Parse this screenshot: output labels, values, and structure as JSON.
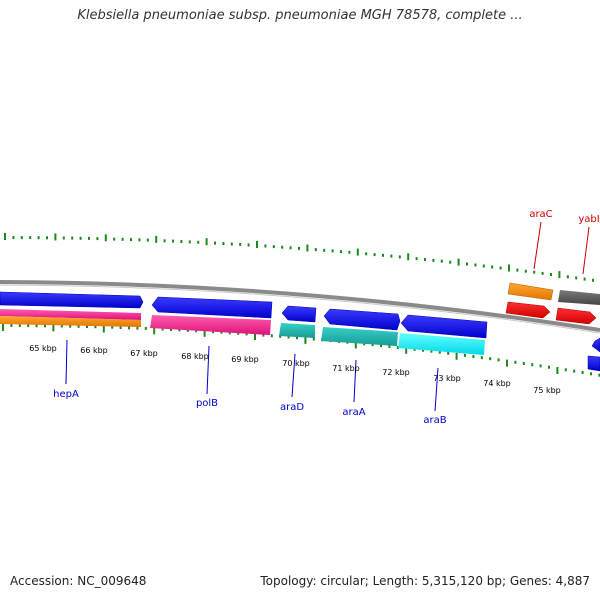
{
  "title": "Klebsiella pneumoniae subsp. pneumoniae MGH 78578, complete ...",
  "footer": {
    "accession": "Accession: NC_009648",
    "summary": "Topology: circular; Length: 5,315,120 bp; Genes: 4,887"
  },
  "ticks": [
    "65 kbp",
    "66 kbp",
    "67 kbp",
    "68 kbp",
    "69 kbp",
    "70 kbp",
    "71 kbp",
    "72 kbp",
    "73 kbp",
    "74 kbp",
    "75 kbp"
  ],
  "gene_labels": [
    "hepA",
    "polB",
    "araD",
    "araA",
    "araB",
    "araC",
    "yabI"
  ],
  "colors": {
    "blue": "#0000ee",
    "pink": "#ff1493",
    "orange": "#ff8c00",
    "teal": "#20b2aa",
    "cyan": "#00ffff",
    "red": "#ff0000",
    "gray": "#555555",
    "gc_green": "#1a8a1a",
    "label_blue": "#0000cc",
    "label_red": "#cc0000"
  }
}
